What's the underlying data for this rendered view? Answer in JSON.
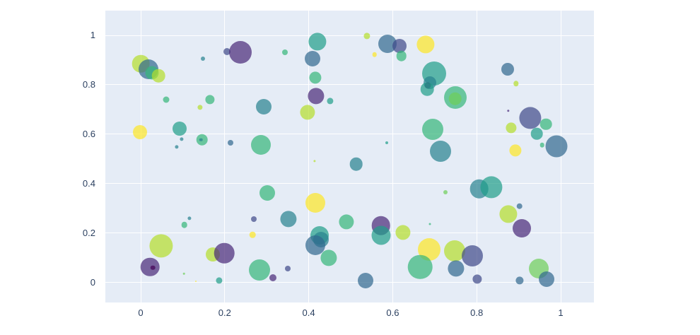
{
  "figure": {
    "background": "#ffffff",
    "plot_background": "#e5ecf6",
    "grid_color": "#ffffff",
    "tick_color": "#2a3f5f"
  },
  "chart_data": {
    "type": "scatter",
    "subtype": "bubble",
    "title": "",
    "xlabel": "",
    "ylabel": "",
    "legend": "none",
    "grid": true,
    "x_range": [
      -0.084,
      1.077
    ],
    "y_range": [
      -0.082,
      1.099
    ],
    "x_tick_values": [
      0,
      0.2,
      0.4,
      0.6,
      0.8,
      1
    ],
    "x_tick_labels": [
      "0",
      "0.2",
      "0.4",
      "0.6",
      "0.8",
      "1"
    ],
    "y_tick_values": [
      0,
      0.2,
      0.4,
      0.6,
      0.8,
      1
    ],
    "y_tick_labels": [
      "0",
      "0.2",
      "0.4",
      "0.6",
      "0.8",
      "1"
    ],
    "marker_opacity": 0.7,
    "palette": {
      "Y": "#fde725",
      "YG": "#b5de2b",
      "LG": "#6ece58",
      "G": "#35b779",
      "T": "#1f9e89",
      "DT": "#26828e",
      "SB": "#31688e",
      "IN": "#3e4989",
      "P": "#482878",
      "DP": "#440154"
    },
    "points": [
      {
        "x": 0.0,
        "y": 0.885,
        "r": 12.3,
        "c": "YG"
      },
      {
        "x": 0.019,
        "y": 0.863,
        "r": 14.0,
        "c": "SB"
      },
      {
        "x": 0.027,
        "y": 0.848,
        "r": 9.5,
        "c": "G"
      },
      {
        "x": 0.042,
        "y": 0.837,
        "r": 9.3,
        "c": "YG"
      },
      {
        "x": 0.061,
        "y": 0.74,
        "r": 4.5,
        "c": "G"
      },
      {
        "x": 0.141,
        "y": 0.708,
        "r": 3.6,
        "c": "YG"
      },
      {
        "x": 0.165,
        "y": 0.74,
        "r": 6.6,
        "c": "G"
      },
      {
        "x": -0.002,
        "y": 0.608,
        "r": 10.0,
        "c": "Y"
      },
      {
        "x": 0.093,
        "y": 0.622,
        "r": 10.0,
        "c": "T"
      },
      {
        "x": 0.098,
        "y": 0.579,
        "r": 2.6,
        "c": "DT"
      },
      {
        "x": 0.086,
        "y": 0.548,
        "r": 2.6,
        "c": "DT"
      },
      {
        "x": 0.148,
        "y": 0.906,
        "r": 3.0,
        "c": "DT"
      },
      {
        "x": 0.205,
        "y": 0.934,
        "r": 5.0,
        "c": "IN"
      },
      {
        "x": 0.237,
        "y": 0.931,
        "r": 16.0,
        "c": "P"
      },
      {
        "x": 0.343,
        "y": 0.931,
        "r": 4.0,
        "c": "G"
      },
      {
        "x": 0.421,
        "y": 0.974,
        "r": 12.6,
        "c": "T"
      },
      {
        "x": 0.409,
        "y": 0.906,
        "r": 11.0,
        "c": "SB"
      },
      {
        "x": 0.416,
        "y": 0.828,
        "r": 8.6,
        "c": "G"
      },
      {
        "x": 0.418,
        "y": 0.754,
        "r": 11.6,
        "c": "P"
      },
      {
        "x": 0.451,
        "y": 0.734,
        "r": 4.6,
        "c": "T"
      },
      {
        "x": 0.397,
        "y": 0.688,
        "r": 10.6,
        "c": "YG"
      },
      {
        "x": 0.293,
        "y": 0.711,
        "r": 11.0,
        "c": "DT"
      },
      {
        "x": 0.146,
        "y": 0.577,
        "r": 8.3,
        "c": "G"
      },
      {
        "x": 0.143,
        "y": 0.577,
        "r": 2.3,
        "c": "DT"
      },
      {
        "x": 0.214,
        "y": 0.565,
        "r": 4.0,
        "c": "SB"
      },
      {
        "x": 0.286,
        "y": 0.557,
        "r": 14.0,
        "c": "G"
      },
      {
        "x": 0.539,
        "y": 0.997,
        "r": 4.6,
        "c": "YG"
      },
      {
        "x": 0.557,
        "y": 0.923,
        "r": 3.3,
        "c": "Y"
      },
      {
        "x": 0.588,
        "y": 0.966,
        "r": 13.0,
        "c": "SB"
      },
      {
        "x": 0.616,
        "y": 0.957,
        "r": 10.0,
        "c": "IN"
      },
      {
        "x": 0.621,
        "y": 0.917,
        "r": 7.3,
        "c": "G"
      },
      {
        "x": 0.678,
        "y": 0.963,
        "r": 12.6,
        "c": "Y"
      },
      {
        "x": 0.699,
        "y": 0.846,
        "r": 17.0,
        "c": "T"
      },
      {
        "x": 0.689,
        "y": 0.808,
        "r": 9.0,
        "c": "DT"
      },
      {
        "x": 0.683,
        "y": 0.797,
        "r": 4.5,
        "c": "P"
      },
      {
        "x": 0.682,
        "y": 0.782,
        "r": 9.3,
        "c": "T"
      },
      {
        "x": 0.749,
        "y": 0.748,
        "r": 16.0,
        "c": "G"
      },
      {
        "x": 0.749,
        "y": 0.743,
        "r": 9.3,
        "c": "LG"
      },
      {
        "x": 0.586,
        "y": 0.565,
        "r": 2.0,
        "c": "T"
      },
      {
        "x": 0.695,
        "y": 0.619,
        "r": 15.0,
        "c": "G"
      },
      {
        "x": 0.513,
        "y": 0.479,
        "r": 9.3,
        "c": "DT"
      },
      {
        "x": 0.874,
        "y": 0.863,
        "r": 9.0,
        "c": "SB"
      },
      {
        "x": 0.894,
        "y": 0.805,
        "r": 3.7,
        "c": "YG"
      },
      {
        "x": 0.875,
        "y": 0.694,
        "r": 1.7,
        "c": "P"
      },
      {
        "x": 0.928,
        "y": 0.665,
        "r": 15.6,
        "c": "IN"
      },
      {
        "x": 0.965,
        "y": 0.64,
        "r": 8.3,
        "c": "G"
      },
      {
        "x": 0.882,
        "y": 0.625,
        "r": 7.6,
        "c": "YG"
      },
      {
        "x": 0.943,
        "y": 0.602,
        "r": 8.3,
        "c": "T"
      },
      {
        "x": 0.956,
        "y": 0.556,
        "r": 3.3,
        "c": "G"
      },
      {
        "x": 0.99,
        "y": 0.551,
        "r": 15.5,
        "c": "SB"
      },
      {
        "x": 0.892,
        "y": 0.534,
        "r": 8.6,
        "c": "Y"
      },
      {
        "x": 0.714,
        "y": 0.531,
        "r": 15.0,
        "c": "DT"
      },
      {
        "x": 0.726,
        "y": 0.365,
        "r": 3.0,
        "c": "LG"
      },
      {
        "x": 0.806,
        "y": 0.379,
        "r": 13.3,
        "c": "DT"
      },
      {
        "x": 0.835,
        "y": 0.385,
        "r": 15.6,
        "c": "T"
      },
      {
        "x": 0.902,
        "y": 0.308,
        "r": 4.3,
        "c": "SB"
      },
      {
        "x": 0.875,
        "y": 0.276,
        "r": 12.6,
        "c": "YG"
      },
      {
        "x": 0.907,
        "y": 0.219,
        "r": 13.0,
        "c": "P"
      },
      {
        "x": 0.49,
        "y": 0.245,
        "r": 10.6,
        "c": "G"
      },
      {
        "x": 0.352,
        "y": 0.256,
        "r": 11.6,
        "c": "DT"
      },
      {
        "x": 0.416,
        "y": 0.322,
        "r": 14.0,
        "c": "Y"
      },
      {
        "x": 0.301,
        "y": 0.362,
        "r": 11.0,
        "c": "G"
      },
      {
        "x": 0.269,
        "y": 0.256,
        "r": 4.0,
        "c": "IN"
      },
      {
        "x": 0.266,
        "y": 0.193,
        "r": 4.3,
        "c": "Y"
      },
      {
        "x": 0.116,
        "y": 0.259,
        "r": 2.6,
        "c": "DT"
      },
      {
        "x": 0.104,
        "y": 0.233,
        "r": 4.3,
        "c": "G"
      },
      {
        "x": 0.049,
        "y": 0.147,
        "r": 16.6,
        "c": "YG"
      },
      {
        "x": 0.022,
        "y": 0.062,
        "r": 13.3,
        "c": "P"
      },
      {
        "x": 0.029,
        "y": 0.059,
        "r": 3.3,
        "c": "DP"
      },
      {
        "x": 0.172,
        "y": 0.113,
        "r": 10.0,
        "c": "YG"
      },
      {
        "x": 0.199,
        "y": 0.119,
        "r": 14.3,
        "c": "P"
      },
      {
        "x": 0.103,
        "y": 0.036,
        "r": 1.3,
        "c": "LG"
      },
      {
        "x": 0.131,
        "y": 0.004,
        "r": 1.0,
        "c": "Y"
      },
      {
        "x": 0.187,
        "y": 0.007,
        "r": 4.6,
        "c": "T"
      },
      {
        "x": 0.283,
        "y": 0.05,
        "r": 15.0,
        "c": "G"
      },
      {
        "x": 0.315,
        "y": 0.019,
        "r": 5.0,
        "c": "P"
      },
      {
        "x": 0.35,
        "y": 0.056,
        "r": 4.0,
        "c": "IN"
      },
      {
        "x": 0.426,
        "y": 0.19,
        "r": 13.0,
        "c": "T"
      },
      {
        "x": 0.429,
        "y": 0.173,
        "r": 11.0,
        "c": "DT"
      },
      {
        "x": 0.416,
        "y": 0.15,
        "r": 14.0,
        "c": "SB"
      },
      {
        "x": 0.448,
        "y": 0.099,
        "r": 11.6,
        "c": "G"
      },
      {
        "x": 0.414,
        "y": 0.491,
        "r": 1.6,
        "c": "YG"
      },
      {
        "x": 0.572,
        "y": 0.23,
        "r": 13.3,
        "c": "P"
      },
      {
        "x": 0.572,
        "y": 0.19,
        "r": 13.5,
        "c": "T"
      },
      {
        "x": 0.625,
        "y": 0.202,
        "r": 10.6,
        "c": "YG"
      },
      {
        "x": 0.688,
        "y": 0.236,
        "r": 1.5,
        "c": "G"
      },
      {
        "x": 0.687,
        "y": 0.133,
        "r": 16.0,
        "c": "Y"
      },
      {
        "x": 0.747,
        "y": 0.127,
        "r": 15.0,
        "c": "YG"
      },
      {
        "x": 0.79,
        "y": 0.107,
        "r": 15.0,
        "c": "IN"
      },
      {
        "x": 0.665,
        "y": 0.062,
        "r": 17.3,
        "c": "G"
      },
      {
        "x": 0.751,
        "y": 0.056,
        "r": 11.6,
        "c": "SB"
      },
      {
        "x": 0.801,
        "y": 0.013,
        "r": 6.6,
        "c": "IN"
      },
      {
        "x": 0.535,
        "y": 0.007,
        "r": 11.0,
        "c": "SB"
      },
      {
        "x": 0.902,
        "y": 0.007,
        "r": 5.6,
        "c": "SB"
      },
      {
        "x": 0.948,
        "y": 0.056,
        "r": 14.0,
        "c": "LG"
      },
      {
        "x": 0.966,
        "y": 0.013,
        "r": 11.0,
        "c": "SB"
      }
    ]
  }
}
